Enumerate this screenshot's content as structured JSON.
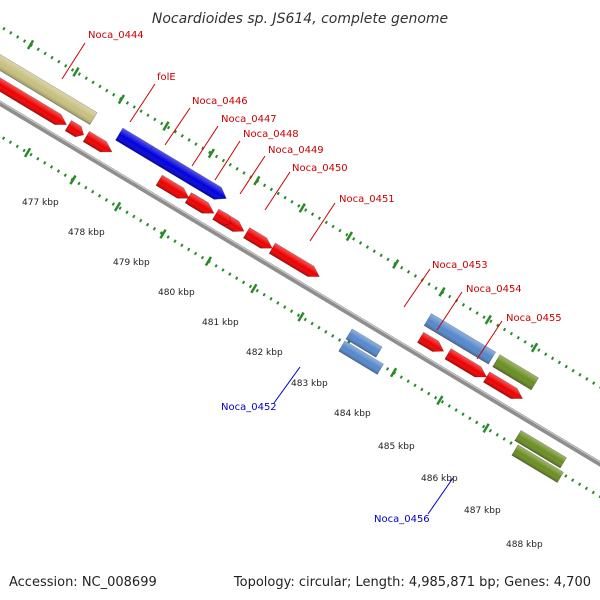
{
  "title": "Nocardioides sp. JS614, complete genome",
  "footer": {
    "accession": "Accession: NC_008699",
    "summary": "Topology: circular; Length: 4,985,871 bp; Genes: 4,700"
  },
  "colors": {
    "background": "#ffffff",
    "backbone": "#9a9a9a",
    "tick": "#2a8a2a",
    "forward_label": "#cc0000",
    "reverse_label": "#0000cc"
  },
  "ticks": [
    "477 kbp",
    "478 kbp",
    "479 kbp",
    "480 kbp",
    "481 kbp",
    "482 kbp",
    "483 kbp",
    "484 kbp",
    "485 kbp",
    "486 kbp",
    "487 kbp",
    "488 kbp"
  ],
  "genes": [
    {
      "id": "noca_0444",
      "label": "Noca_0444",
      "color": "#c8c080",
      "strand": "forward"
    },
    {
      "id": "fole",
      "label": "folE",
      "color": "#0000dd",
      "strand": "forward"
    },
    {
      "id": "noca_0446",
      "label": "Noca_0446",
      "color": "#0000dd",
      "strand": "forward"
    },
    {
      "id": "noca_0447",
      "label": "Noca_0447",
      "color": "#ee0000",
      "strand": "forward"
    },
    {
      "id": "noca_0448",
      "label": "Noca_0448",
      "color": "#ee0000",
      "strand": "forward"
    },
    {
      "id": "noca_0449",
      "label": "Noca_0449",
      "color": "#ee0000",
      "strand": "forward"
    },
    {
      "id": "noca_0450",
      "label": "Noca_0450",
      "color": "#ee0000",
      "strand": "forward"
    },
    {
      "id": "noca_0451",
      "label": "Noca_0451",
      "color": "#ee0000",
      "strand": "forward"
    },
    {
      "id": "noca_0452",
      "label": "Noca_0452",
      "color": "#5588cc",
      "strand": "reverse"
    },
    {
      "id": "noca_0453",
      "label": "Noca_0453",
      "color": "#5588cc",
      "strand": "forward"
    },
    {
      "id": "noca_0454",
      "label": "Noca_0454",
      "color": "#6b8e23",
      "strand": "forward"
    },
    {
      "id": "noca_0455",
      "label": "Noca_0455",
      "color": "#ee0000",
      "strand": "forward"
    },
    {
      "id": "noca_0456",
      "label": "Noca_0456",
      "color": "#6b8e23",
      "strand": "reverse"
    }
  ]
}
